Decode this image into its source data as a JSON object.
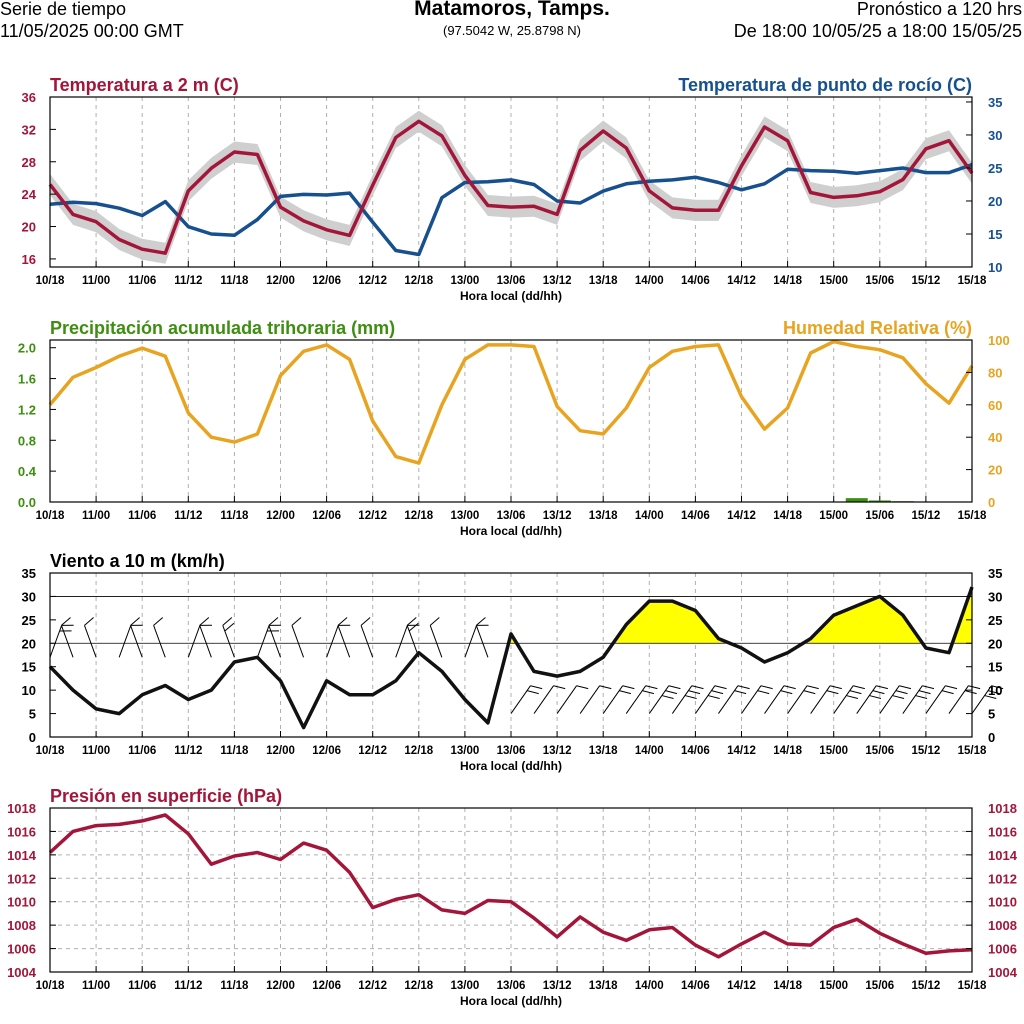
{
  "header": {
    "left_line1": "Serie de tiempo",
    "left_line2": "11/05/2025 00:00 GMT",
    "title": "Matamoros, Tamps.",
    "coords": "(97.5042 W, 25.8798 N)",
    "right_line1": "Pronóstico a 120 hrs",
    "right_line2": "De 18:00 10/05/25 a 18:00 15/05/25"
  },
  "x_labels": [
    "10/18",
    "11/00",
    "11/06",
    "11/12",
    "11/18",
    "12/00",
    "12/06",
    "12/12",
    "12/18",
    "13/00",
    "13/06",
    "13/12",
    "13/18",
    "14/00",
    "14/06",
    "14/12",
    "14/18",
    "15/00",
    "15/06",
    "15/12",
    "15/18"
  ],
  "x_axis_label": "Hora local (dd/hh)",
  "colors": {
    "temp": "#a3163a",
    "dew": "#16508f",
    "precip": "#3d8f10",
    "rh": "#e8a420",
    "wind": "#111111",
    "wind_fill": "#ffff00",
    "wind_fill2": "#ff9a00",
    "pressure": "#a3163a"
  },
  "chart_data": [
    {
      "id": "temperature",
      "type": "line",
      "title": "Temperatura a 2 m (C)",
      "title_right": "Temperatura de punto de rocío (C)",
      "x_unit": "hours since 10/18",
      "ylim_left": [
        15,
        36
      ],
      "ylim_right": [
        10,
        35.75
      ],
      "yticks_left": [
        16,
        20,
        24,
        28,
        32,
        36
      ],
      "yticks_right": [
        10,
        15,
        20,
        25,
        30,
        35
      ],
      "series": [
        {
          "name": "Temperatura a 2 m",
          "axis": "left",
          "x": [
            0,
            3,
            6,
            9,
            12,
            15,
            18,
            21,
            24,
            27,
            30,
            33,
            36,
            39,
            42,
            45,
            48,
            51,
            54,
            57,
            60,
            63,
            66,
            69,
            72,
            75,
            78,
            81,
            84,
            87,
            90,
            93,
            96,
            99,
            102,
            105,
            108,
            111,
            114,
            117,
            120
          ],
          "y": [
            25.2,
            21.5,
            20.6,
            18.4,
            17.2,
            16.7,
            24.4,
            27.2,
            29.2,
            28.9,
            22.4,
            20.7,
            19.6,
            18.9,
            25.1,
            31.0,
            33.0,
            31.2,
            26.3,
            22.6,
            22.4,
            22.5,
            21.5,
            29.4,
            31.8,
            29.7,
            24.4,
            22.3,
            22.0,
            22.0,
            27.5,
            32.3,
            30.6,
            24.2,
            23.6,
            23.8,
            24.3,
            25.8,
            29.6,
            30.6,
            26.6
          ]
        },
        {
          "name": "Temperatura de punto de rocío",
          "axis": "right",
          "x": [
            0,
            3,
            6,
            9,
            12,
            15,
            18,
            21,
            24,
            27,
            30,
            33,
            36,
            39,
            42,
            45,
            48,
            51,
            54,
            57,
            60,
            63,
            66,
            69,
            72,
            75,
            78,
            81,
            84,
            87,
            90,
            93,
            96,
            99,
            102,
            105,
            108,
            111,
            114,
            117,
            120
          ],
          "y": [
            19.5,
            19.8,
            19.6,
            18.9,
            17.8,
            19.9,
            16.1,
            15.0,
            14.8,
            17.2,
            20.7,
            21.0,
            20.9,
            21.2,
            16.8,
            12.5,
            11.9,
            20.5,
            22.8,
            22.9,
            23.2,
            22.5,
            20.0,
            19.7,
            21.5,
            22.6,
            23.0,
            23.2,
            23.6,
            22.8,
            21.7,
            22.6,
            24.8,
            24.6,
            24.5,
            24.2,
            24.6,
            25.0,
            24.3,
            24.3,
            25.5
          ]
        }
      ]
    },
    {
      "id": "precip_rh",
      "type": "line",
      "title": "Precipitación acumulada trihoraria (mm)",
      "title_right": "Humedad Relativa (%)",
      "ylim_left": [
        0,
        2.1
      ],
      "ylim_right": [
        0,
        100
      ],
      "yticks_left": [
        0.0,
        0.4,
        0.8,
        1.2,
        1.6,
        2.0
      ],
      "ytick_labels_left": [
        "0.0",
        "0.4",
        "0.8",
        "1.2",
        "1.6",
        "2.0"
      ],
      "yticks_right": [
        0,
        20,
        40,
        60,
        80,
        100
      ],
      "series": [
        {
          "name": "Humedad Relativa",
          "axis": "right",
          "x": [
            0,
            3,
            6,
            9,
            12,
            15,
            18,
            21,
            24,
            27,
            30,
            33,
            36,
            39,
            42,
            45,
            48,
            51,
            54,
            57,
            60,
            63,
            66,
            69,
            72,
            75,
            78,
            81,
            84,
            87,
            90,
            93,
            96,
            99,
            102,
            105,
            108,
            111,
            114,
            117,
            120
          ],
          "y": [
            60,
            77,
            83,
            90,
            95,
            90,
            55,
            40,
            37,
            42,
            78,
            93,
            97,
            88,
            50,
            28,
            24,
            60,
            88,
            97,
            97,
            96,
            59,
            44,
            42,
            58,
            83,
            93,
            96,
            97,
            65,
            45,
            58,
            92,
            99,
            96,
            94,
            89,
            73,
            61,
            84
          ]
        },
        {
          "name": "Precipitación acumulada trihoraria",
          "axis": "left",
          "type": "bar",
          "x": [
            105,
            108,
            111
          ],
          "y": [
            0.05,
            0.02,
            0.01
          ]
        }
      ]
    },
    {
      "id": "wind",
      "type": "area",
      "title": "Viento a 10 m (km/h)",
      "ylim": [
        0,
        35
      ],
      "yticks": [
        0,
        5,
        10,
        15,
        20,
        25,
        30,
        35
      ],
      "thresholds": [
        20,
        30
      ],
      "series": [
        {
          "name": "Viento a 10 m",
          "x": [
            0,
            3,
            6,
            9,
            12,
            15,
            18,
            21,
            24,
            27,
            30,
            33,
            36,
            39,
            42,
            45,
            48,
            51,
            54,
            57,
            60,
            63,
            66,
            69,
            72,
            75,
            78,
            81,
            84,
            87,
            90,
            93,
            96,
            99,
            102,
            105,
            108,
            111,
            114,
            117,
            120
          ],
          "y": [
            15,
            10,
            6,
            5,
            9,
            11,
            8,
            10,
            16,
            17,
            12,
            2,
            12,
            9,
            9,
            12,
            18,
            14,
            8,
            3,
            22,
            14,
            13,
            14,
            17,
            24,
            29,
            29,
            27,
            21,
            19,
            16,
            18,
            21,
            26,
            28,
            30,
            26,
            19,
            18,
            32
          ]
        }
      ],
      "barbs_row_top": "wind barbs drawn along upper region (first half) and low region (second half)"
    },
    {
      "id": "pressure",
      "type": "line",
      "title": "Presión en superficie (hPa)",
      "ylim": [
        1004,
        1018
      ],
      "yticks": [
        1004,
        1006,
        1008,
        1010,
        1012,
        1014,
        1016,
        1018
      ],
      "series": [
        {
          "name": "Presión en superficie",
          "x": [
            0,
            3,
            6,
            9,
            12,
            15,
            18,
            21,
            24,
            27,
            30,
            33,
            36,
            39,
            42,
            45,
            48,
            51,
            54,
            57,
            60,
            63,
            66,
            69,
            72,
            75,
            78,
            81,
            84,
            87,
            90,
            93,
            96,
            99,
            102,
            105,
            108,
            111,
            114,
            117,
            120
          ],
          "y": [
            1014.2,
            1016.0,
            1016.5,
            1016.6,
            1016.9,
            1017.4,
            1015.8,
            1013.2,
            1013.9,
            1014.2,
            1013.6,
            1015.0,
            1014.4,
            1012.5,
            1009.5,
            1010.2,
            1010.6,
            1009.3,
            1009.0,
            1010.1,
            1010.0,
            1008.6,
            1007.0,
            1008.7,
            1007.4,
            1006.7,
            1007.6,
            1007.8,
            1006.3,
            1005.3,
            1006.4,
            1007.4,
            1006.4,
            1006.3,
            1007.8,
            1008.5,
            1007.3,
            1006.4,
            1005.6,
            1005.8,
            1005.9
          ]
        }
      ]
    }
  ]
}
